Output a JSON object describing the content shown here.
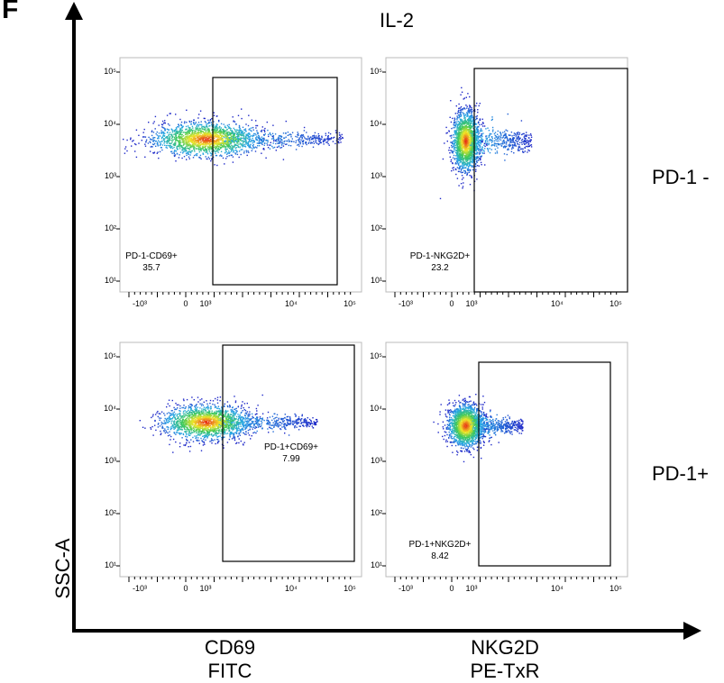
{
  "figure": {
    "panel_letter": "F",
    "column_title": "IL-2",
    "y_axis_title": "SSC-A",
    "x_axis_titles": [
      {
        "marker": "CD69",
        "channel": "FITC"
      },
      {
        "marker": "NKG2D",
        "channel": "PE-TxR"
      }
    ],
    "row_labels": [
      "PD-1 -",
      "PD-1+"
    ]
  },
  "chart_data": {
    "type": "scatter",
    "y_ticks": [
      "10¹",
      "10²",
      "10³",
      "10⁴",
      "10⁵"
    ],
    "x_ticks": [
      "-10³",
      "0",
      "10³",
      "10⁴",
      "10⁵"
    ],
    "plots": [
      {
        "id": "pd1neg-cd69",
        "gate_name": "PD-1-CD69+",
        "gate_value": "35.7"
      },
      {
        "id": "pd1neg-nkg2d",
        "gate_name": "PD-1-NKG2D+",
        "gate_value": "23.2"
      },
      {
        "id": "pd1pos-cd69",
        "gate_name": "PD-1+CD69+",
        "gate_value": "7.99"
      },
      {
        "id": "pd1pos-nkg2d",
        "gate_name": "PD-1+NKG2D+",
        "gate_value": "8.42"
      }
    ]
  }
}
